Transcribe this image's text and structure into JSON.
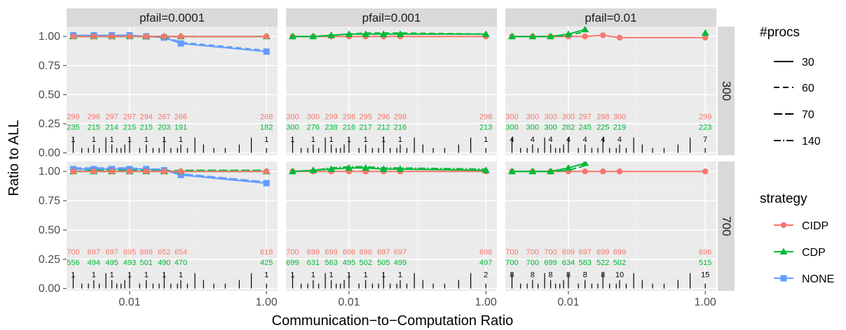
{
  "chart_data": {
    "type": "line",
    "xlabel": "Communication−to−Computation Ratio",
    "ylabel": "Ratio to ALL",
    "x_values": [
      0.0015,
      0.003,
      0.0055,
      0.01,
      0.0175,
      0.032,
      0.056,
      1.0
    ],
    "x_ticks": [
      0.01,
      1.0
    ],
    "x_tick_labels": [
      "0.01",
      "1.00"
    ],
    "ylim": [
      0,
      1.05
    ],
    "y_ticks": [
      0.0,
      0.25,
      0.5,
      0.75,
      1.0
    ],
    "y_tick_labels": [
      "0.00",
      "0.25",
      "0.50",
      "0.75",
      "1.00"
    ],
    "col_facets": [
      "pfail=0.0001",
      "pfail=0.001",
      "pfail=0.01"
    ],
    "row_facets": [
      "300",
      "700"
    ],
    "legend_procs": {
      "title": "#procs",
      "items": [
        "30",
        "60",
        "70",
        "140"
      ]
    },
    "legend_strategy": {
      "title": "strategy",
      "items": [
        {
          "name": "CIDP",
          "color": "#F8766D",
          "shape": "circle"
        },
        {
          "name": "CDP",
          "color": "#00BA38",
          "shape": "triangle"
        },
        {
          "name": "NONE",
          "color": "#619CFF",
          "shape": "square"
        }
      ]
    },
    "panels": [
      {
        "counts_cidp": [
          "299",
          "296",
          "297",
          "297",
          "294",
          "267",
          "266",
          "268"
        ],
        "counts_cdp": [
          "235",
          "215",
          "214",
          "215",
          "215",
          "203",
          "191",
          "182"
        ],
        "counts_none": [
          "1",
          "1",
          "1",
          "1",
          "1",
          "1",
          "1",
          "1"
        ],
        "series": [
          {
            "strategy": "NONE",
            "procs": "30",
            "y": [
              1.01,
              1.01,
              1.01,
              1.01,
              1.0,
              0.99,
              0.94,
              0.87
            ]
          },
          {
            "strategy": "NONE",
            "procs": "60",
            "y": [
              1.01,
              1.01,
              1.01,
              1.01,
              1.0,
              1.0,
              0.95,
              0.88
            ]
          },
          {
            "strategy": "CDP",
            "procs": "30",
            "y": [
              1.0,
              1.0,
              1.0,
              1.0,
              1.0,
              1.0,
              1.0,
              1.0
            ]
          },
          {
            "strategy": "CDP",
            "procs": "60",
            "y": [
              1.0,
              1.0,
              1.0,
              1.0,
              1.0,
              1.0,
              1.0,
              1.0
            ]
          },
          {
            "strategy": "CIDP",
            "procs": "30",
            "y": [
              1.0,
              1.0,
              1.0,
              1.0,
              1.0,
              1.0,
              1.0,
              1.0
            ]
          }
        ]
      },
      {
        "counts_cidp": [
          "300",
          "300",
          "299",
          "298",
          "295",
          "296",
          "298",
          "298"
        ],
        "counts_cdp": [
          "300",
          "276",
          "238",
          "216",
          "217",
          "212",
          "216",
          "213"
        ],
        "counts_none": [
          "1",
          "1",
          "1",
          "1",
          "1",
          "1",
          "1",
          "1"
        ],
        "series": [
          {
            "strategy": "CIDP",
            "procs": "30",
            "y": [
              1.0,
              1.0,
              1.0,
              1.0,
              1.0,
              1.0,
              1.0,
              1.0
            ]
          },
          {
            "strategy": "CDP",
            "procs": "30",
            "y": [
              1.0,
              1.0,
              1.01,
              1.02,
              1.02,
              1.02,
              1.02,
              1.02
            ]
          },
          {
            "strategy": "CDP",
            "procs": "60",
            "y": [
              1.0,
              1.0,
              1.01,
              1.02,
              1.03,
              1.03,
              1.03,
              1.02
            ]
          }
        ]
      },
      {
        "counts_cidp": [
          "300",
          "300",
          "300",
          "300",
          "297",
          "298",
          "300",
          "299"
        ],
        "counts_cdp": [
          "300",
          "300",
          "300",
          "282",
          "245",
          "225",
          "219",
          "223"
        ],
        "counts_none": [
          "4",
          "4",
          "4",
          "4",
          "4",
          "4",
          "4",
          "7"
        ],
        "series": [
          {
            "strategy": "CIDP",
            "procs": "30",
            "y": [
              1.0,
              1.0,
              1.0,
              1.0,
              1.0,
              1.01,
              0.99,
              0.99
            ]
          },
          {
            "strategy": "CDP",
            "procs": "30",
            "y": [
              1.0,
              1.0,
              1.0,
              1.02,
              1.06,
              null,
              null,
              1.03
            ]
          },
          {
            "strategy": "CDP",
            "procs": "60",
            "y": [
              1.0,
              1.0,
              1.0,
              1.01,
              1.04,
              null,
              null,
              1.02
            ]
          }
        ]
      },
      {
        "counts_cidp": [
          "700",
          "697",
          "697",
          "695",
          "689",
          "652",
          "654",
          "618"
        ],
        "counts_cdp": [
          "556",
          "494",
          "495",
          "493",
          "501",
          "490",
          "470",
          "425"
        ],
        "counts_none": [
          "1",
          "1",
          "1",
          "1",
          "1",
          "1",
          "1",
          "1"
        ],
        "series": [
          {
            "strategy": "NONE",
            "procs": "30",
            "y": [
              1.02,
              1.02,
              1.02,
              1.02,
              1.02,
              1.01,
              0.97,
              0.9
            ]
          },
          {
            "strategy": "NONE",
            "procs": "70",
            "y": [
              1.03,
              1.03,
              1.03,
              1.03,
              1.02,
              1.02,
              0.98,
              0.91
            ]
          },
          {
            "strategy": "CDP",
            "procs": "30",
            "y": [
              1.0,
              1.0,
              1.0,
              1.0,
              1.0,
              1.0,
              1.0,
              1.0
            ]
          },
          {
            "strategy": "CDP",
            "procs": "70",
            "y": [
              1.0,
              1.01,
              1.01,
              1.01,
              1.01,
              1.0,
              1.01,
              1.01
            ]
          },
          {
            "strategy": "CIDP",
            "procs": "30",
            "y": [
              1.0,
              1.0,
              1.0,
              1.0,
              1.0,
              1.0,
              1.0,
              1.0
            ]
          }
        ]
      },
      {
        "counts_cidp": [
          "700",
          "699",
          "699",
          "696",
          "696",
          "697",
          "697",
          "696"
        ],
        "counts_cdp": [
          "699",
          "631",
          "563",
          "495",
          "502",
          "505",
          "499",
          "497"
        ],
        "counts_none": [
          "1",
          "1",
          "1",
          "1",
          "1",
          "1",
          "1",
          "2"
        ],
        "series": [
          {
            "strategy": "CIDP",
            "procs": "30",
            "y": [
              1.0,
              1.0,
              1.0,
              1.0,
              1.0,
              1.0,
              1.0,
              1.0
            ]
          },
          {
            "strategy": "CDP",
            "procs": "30",
            "y": [
              1.0,
              1.01,
              1.02,
              1.03,
              1.03,
              1.02,
              1.02,
              1.01
            ]
          },
          {
            "strategy": "CDP",
            "procs": "140",
            "y": [
              1.0,
              1.01,
              1.03,
              1.04,
              1.04,
              1.03,
              1.03,
              1.02
            ]
          }
        ]
      },
      {
        "counts_cidp": [
          "700",
          "700",
          "700",
          "699",
          "697",
          "699",
          "699",
          "696"
        ],
        "counts_cdp": [
          "700",
          "700",
          "699",
          "634",
          "583",
          "522",
          "502",
          "515"
        ],
        "counts_none": [
          "8",
          "8",
          "8",
          "8",
          "8",
          "8",
          "10",
          "15"
        ],
        "series": [
          {
            "strategy": "CIDP",
            "procs": "30",
            "y": [
              1.0,
              1.0,
              1.0,
              1.0,
              1.0,
              1.0,
              1.0,
              1.0
            ]
          },
          {
            "strategy": "CDP",
            "procs": "30",
            "y": [
              1.0,
              1.0,
              1.0,
              1.03,
              1.07,
              null,
              null,
              null
            ]
          },
          {
            "strategy": "CDP",
            "procs": "70",
            "y": [
              1.0,
              1.0,
              1.0,
              1.01,
              1.05,
              null,
              null,
              null
            ]
          }
        ]
      }
    ]
  }
}
